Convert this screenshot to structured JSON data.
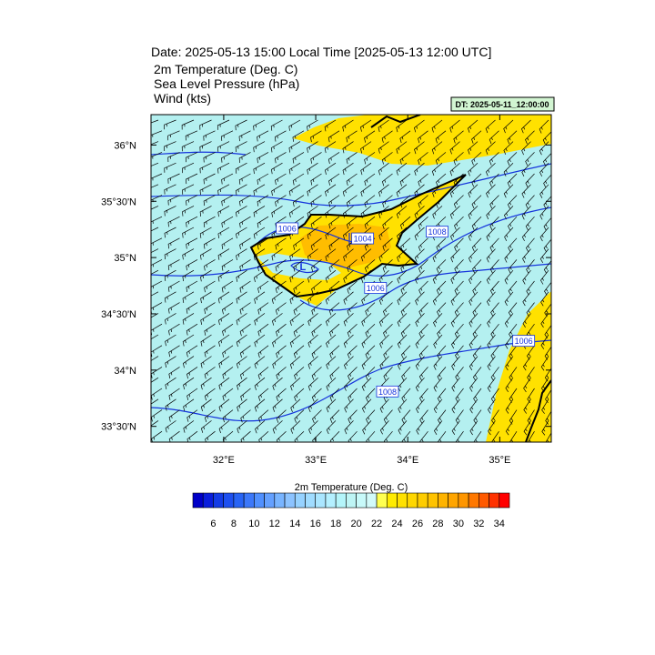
{
  "header": {
    "title": "Date: 2025-05-13  15:00 Local Time [2025-05-13  12:00 UTC]",
    "fields": [
      "2m Temperature (Deg. C)",
      "Sea Level Pressure   (hPa)",
      "Wind   (kts)"
    ],
    "init": "DT: 2025-05-11_12:00:00"
  },
  "map": {
    "lon_range": [
      31.21,
      35.56
    ],
    "lat_range": [
      33.36,
      36.27
    ],
    "lon_ticks": [
      {
        "value": 32,
        "label": "32°E"
      },
      {
        "value": 33,
        "label": "33°E"
      },
      {
        "value": 34,
        "label": "34°E"
      },
      {
        "value": 35,
        "label": "35°E"
      }
    ],
    "lat_ticks": [
      {
        "value": 36,
        "label": "36°N"
      },
      {
        "value": 35.5,
        "label": "35°30'N"
      },
      {
        "value": 35,
        "label": "35°N"
      },
      {
        "value": 34.5,
        "label": "34°30'N"
      },
      {
        "value": 34,
        "label": "34°N"
      },
      {
        "value": 33.5,
        "label": "33°30'N"
      }
    ],
    "pressure_labels": [
      {
        "level": 1006,
        "lon": 32.69,
        "lat": 35.26
      },
      {
        "level": 1004,
        "lon": 33.51,
        "lat": 35.17
      },
      {
        "level": 1008,
        "lon": 34.32,
        "lat": 35.23
      },
      {
        "level": 1006,
        "lon": 33.65,
        "lat": 34.73
      },
      {
        "level": 1006,
        "lon": 35.26,
        "lat": 34.26
      },
      {
        "level": 1008,
        "lon": 33.78,
        "lat": 33.81
      }
    ],
    "low": {
      "text": "L",
      "lon": 32.86,
      "lat": 34.92
    }
  },
  "colorbar": {
    "title": "2m Temperature (Deg. C)",
    "labels": [
      6,
      8,
      10,
      12,
      14,
      16,
      18,
      20,
      22,
      24,
      26,
      28,
      30,
      32,
      34
    ],
    "colors": [
      "#0000c8",
      "#0a1edc",
      "#143ce6",
      "#1e50f0",
      "#2864f5",
      "#3c78fa",
      "#5090ff",
      "#64a0ff",
      "#78b4ff",
      "#8cc3ff",
      "#96d2ff",
      "#a0dcff",
      "#aae6ff",
      "#b4f0ff",
      "#b4f5fa",
      "#bef5f5",
      "#c8fafa",
      "#d2fafa",
      "#ffff50",
      "#ffeb00",
      "#ffe100",
      "#ffd700",
      "#ffcd00",
      "#ffc300",
      "#ffb400",
      "#ffa500",
      "#ff9600",
      "#ff7800",
      "#ff5a00",
      "#ff3200",
      "#ff0000"
    ]
  }
}
